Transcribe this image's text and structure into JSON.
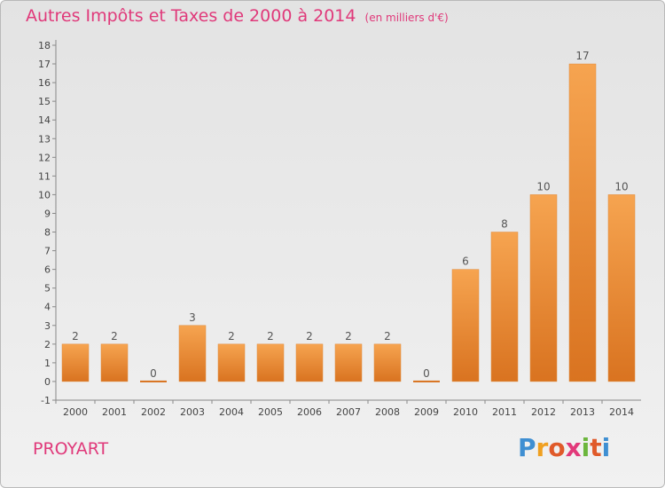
{
  "chart_data": {
    "type": "bar",
    "title": "Autres Impôts et Taxes de 2000 à 2014",
    "unit_label": "(en milliers d'€)",
    "categories": [
      "2000",
      "2001",
      "2002",
      "2003",
      "2004",
      "2005",
      "2006",
      "2007",
      "2008",
      "2009",
      "2010",
      "2011",
      "2012",
      "2013",
      "2014"
    ],
    "values": [
      2,
      2,
      0,
      3,
      2,
      2,
      2,
      2,
      2,
      0,
      6,
      8,
      10,
      17,
      10
    ],
    "ylim": [
      -1,
      18
    ],
    "yticks": [
      "-1",
      "0",
      "1",
      "2",
      "3",
      "4",
      "5",
      "6",
      "7",
      "8",
      "9",
      "10",
      "11",
      "12",
      "13",
      "14",
      "15",
      "16",
      "17",
      "18"
    ],
    "xlabel": "",
    "ylabel": "",
    "bar_color": "#e8872e"
  },
  "commune": "PROYART",
  "logo": {
    "letters": [
      "P",
      "r",
      "o",
      "x",
      "i",
      "t",
      "i"
    ],
    "colors": [
      "#3f8fd2",
      "#f0a020",
      "#e05a2a",
      "#e2397a",
      "#6cb63d",
      "#e05a2a",
      "#3f8fd2"
    ]
  }
}
